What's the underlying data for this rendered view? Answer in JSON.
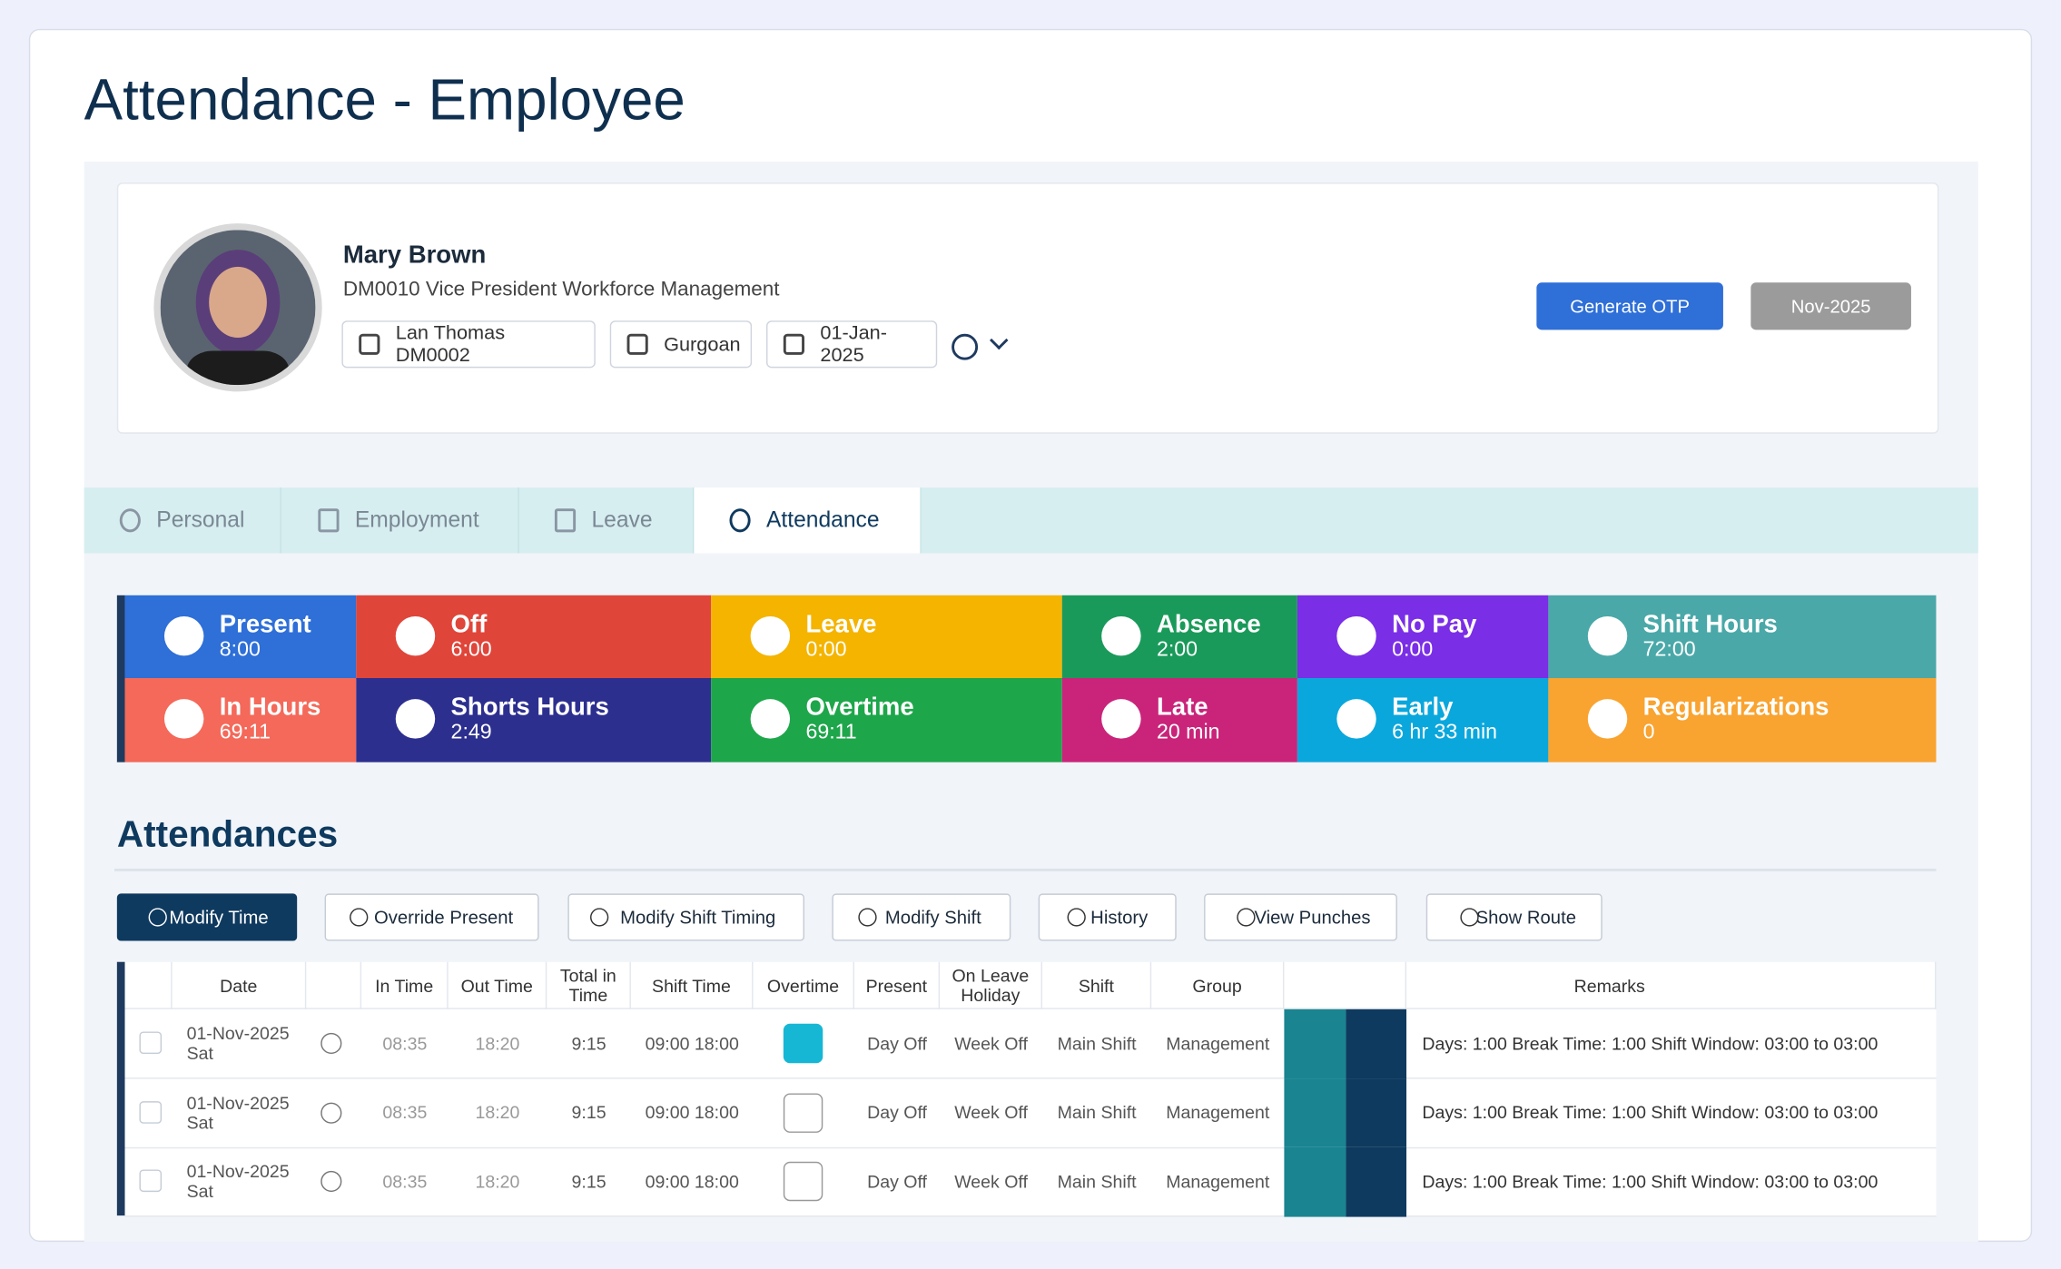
{
  "page": {
    "title": "Attendance - Employee"
  },
  "profile": {
    "name": "Mary Brown",
    "subtitle": "DM0010 Vice President Workforce Management",
    "chips": [
      "Lan Thomas DM0002",
      "Gurgoan",
      "01-Jan-2025"
    ],
    "buttons": [
      "Generate OTP",
      "Nov-2025"
    ]
  },
  "tabs": [
    "Personal",
    "Employment",
    "Leave",
    "Attendance"
  ],
  "stats": [
    {
      "label": "Present",
      "value": "8:00",
      "color": "#2e6fd8"
    },
    {
      "label": "Off",
      "value": "6:00",
      "color": "#e0453a"
    },
    {
      "label": "Leave",
      "value": "0:00",
      "color": "#f4b400"
    },
    {
      "label": "Absence",
      "value": "2:00",
      "color": "#1a9a5a"
    },
    {
      "label": "No Pay",
      "value": "0:00",
      "color": "#7a2ee6"
    },
    {
      "label": "Shift Hours",
      "value": "72:00",
      "color": "#4aa8a8"
    },
    {
      "label": "In Hours",
      "value": "69:11",
      "color": "#f4695a"
    },
    {
      "label": "Shorts Hours",
      "value": "2:49",
      "color": "#2d2f8f"
    },
    {
      "label": "Overtime",
      "value": "69:11",
      "color": "#1ea64a"
    },
    {
      "label": "Late",
      "value": "20 min",
      "color": "#c9247a"
    },
    {
      "label": "Early",
      "value": "6 hr 33 min",
      "color": "#0aa7dd"
    },
    {
      "label": "Regularizations",
      "value": "0",
      "color": "#f9a330"
    }
  ],
  "section_title": "Attendances",
  "actions": [
    "Modify Time",
    "Override Present",
    "Modify Shift Timing",
    "Modify Shift",
    "History",
    "View Punches",
    "Show Route"
  ],
  "table": {
    "headers": [
      "Date",
      "In Time",
      "Out Time",
      "Total in Time",
      "Shift Time",
      "Overtime",
      "Present",
      "On Leave Holiday",
      "Shift",
      "Group",
      "Remarks"
    ],
    "rows": [
      [
        "01-Nov-2025",
        "Sat",
        "08:35",
        "18:20",
        "9:15",
        "09:00 18:00",
        "Day Off",
        "Week Off",
        "Main Shift",
        "Management",
        "Days: 1:00 Break Time: 1:00 Shift Window: 03:00 to 03:00"
      ],
      [
        "01-Nov-2025",
        "Sat",
        "08:35",
        "18:20",
        "9:15",
        "09:00 18:00",
        "Day Off",
        "Week Off",
        "Main Shift",
        "Management",
        "Days: 1:00 Break Time: 1:00 Shift Window: 03:00 to 03:00"
      ],
      [
        "01-Nov-2025",
        "Sat",
        "08:35",
        "18:20",
        "9:15",
        "09:00 18:00",
        "Day Off",
        "Week Off",
        "Main Shift",
        "Management",
        "Days: 1:00 Break Time: 1:00 Shift Window: 03:00 to 03:00"
      ]
    ]
  }
}
